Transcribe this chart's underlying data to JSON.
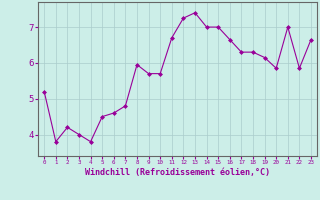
{
  "x": [
    0,
    1,
    2,
    3,
    4,
    5,
    6,
    7,
    8,
    9,
    10,
    11,
    12,
    13,
    14,
    15,
    16,
    17,
    18,
    19,
    20,
    21,
    22,
    23
  ],
  "y": [
    5.2,
    3.8,
    4.2,
    4.0,
    3.8,
    4.5,
    4.6,
    4.8,
    5.95,
    5.7,
    5.7,
    6.7,
    7.25,
    7.4,
    7.0,
    7.0,
    6.65,
    6.3,
    6.3,
    6.15,
    5.85,
    7.0,
    5.85,
    6.65
  ],
  "line_color": "#990099",
  "marker": "D",
  "marker_size": 2,
  "bg_color": "#cceee8",
  "grid_color": "#aacccc",
  "xlabel": "Windchill (Refroidissement éolien,°C)",
  "xlabel_color": "#990099",
  "tick_color": "#990099",
  "ylabel_ticks": [
    4,
    5,
    6,
    7
  ],
  "xlim": [
    -0.5,
    23.5
  ],
  "ylim": [
    3.4,
    7.7
  ]
}
